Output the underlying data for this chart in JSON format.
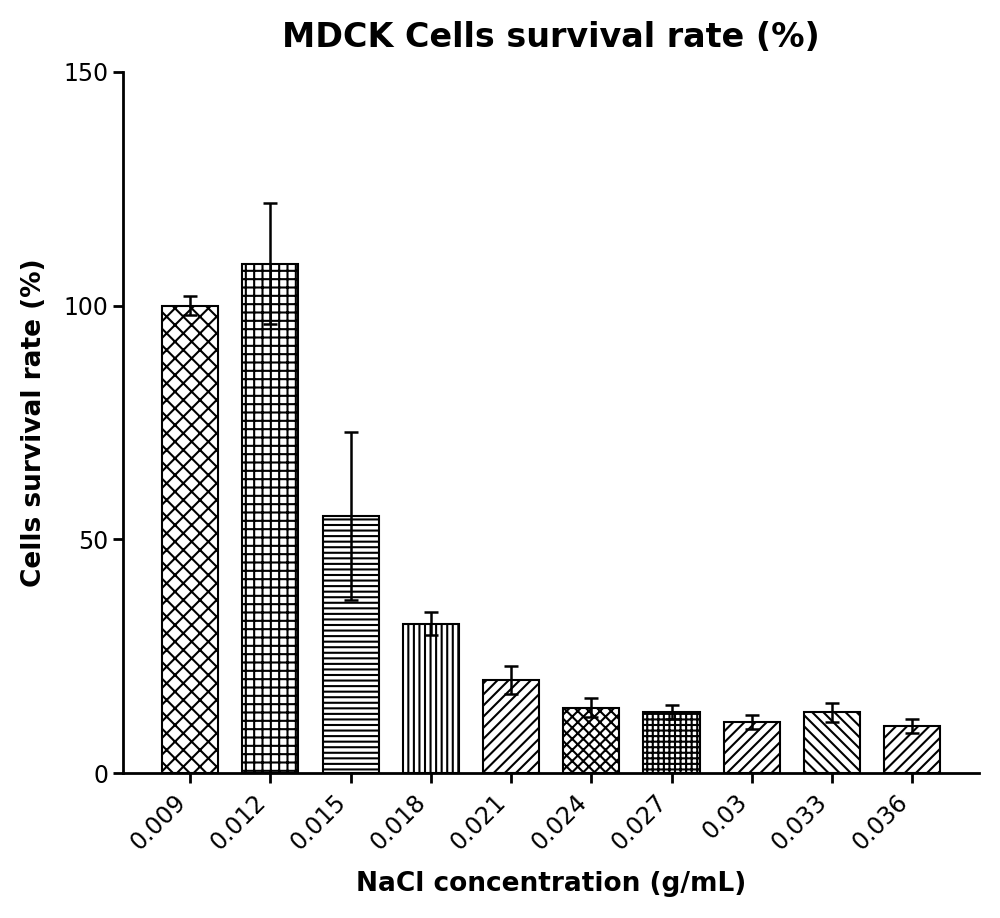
{
  "title": "MDCK Cells survival rate (%)",
  "xlabel": "NaCl concentration (g/mL)",
  "ylabel": "Cells survival rate (%)",
  "categories": [
    "0.009",
    "0.012",
    "0.015",
    "0.018",
    "0.021",
    "0.024",
    "0.027",
    "0.03",
    "0.033",
    "0.036"
  ],
  "values": [
    100,
    109,
    55,
    32,
    20,
    14,
    13,
    11,
    13,
    10
  ],
  "errors": [
    2,
    13,
    18,
    2.5,
    3,
    2,
    1.5,
    1.5,
    2,
    1.5
  ],
  "ylim": [
    0,
    150
  ],
  "yticks": [
    0,
    50,
    100,
    150
  ],
  "title_fontsize": 24,
  "axis_label_fontsize": 19,
  "tick_fontsize": 17,
  "background_color": "#ffffff"
}
